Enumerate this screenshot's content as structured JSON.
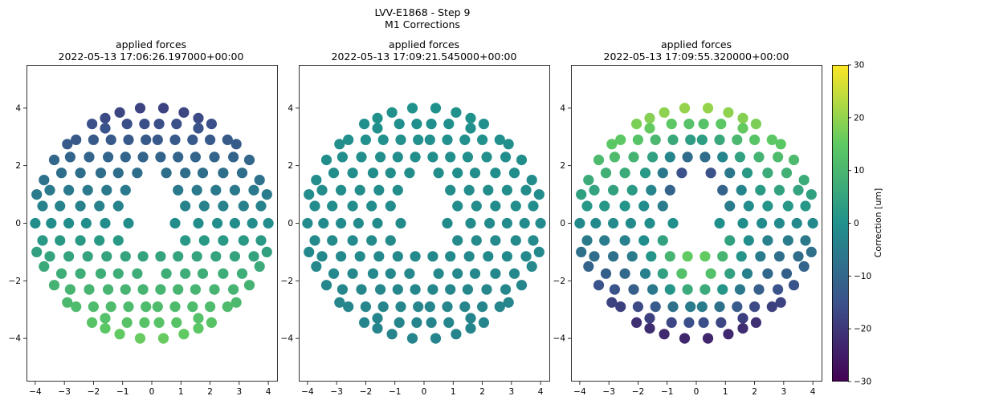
{
  "figure": {
    "suptitle_line1": "LVV-E1868 - Step 9",
    "suptitle_line2": "M1 Corrections"
  },
  "chart_data": [
    {
      "type": "scatter",
      "title": "applied forces",
      "subtitle": "2022-05-13 17:06:26.197000+00:00",
      "xlim": [
        -4.3,
        4.3
      ],
      "ylim": [
        -5.5,
        5.5
      ],
      "xticks": [
        -4,
        -3,
        -2,
        -1,
        0,
        1,
        2,
        3,
        4
      ],
      "yticks": [
        -4,
        -2,
        0,
        2,
        4
      ],
      "color_pattern": "tilt",
      "color_range": [
        -30,
        30
      ],
      "grid": false
    },
    {
      "type": "scatter",
      "title": "applied forces",
      "subtitle": "2022-05-13 17:09:21.545000+00:00",
      "xlim": [
        -4.3,
        4.3
      ],
      "ylim": [
        -5.5,
        5.5
      ],
      "xticks": [
        -4,
        -3,
        -2,
        -1,
        0,
        1,
        2,
        3,
        4
      ],
      "yticks": [
        -4,
        -2,
        0,
        2,
        4
      ],
      "color_pattern": "flat",
      "color_range": [
        -30,
        30
      ],
      "grid": false
    },
    {
      "type": "scatter",
      "title": "applied forces",
      "subtitle": "2022-05-13 17:09:55.320000+00:00",
      "xlim": [
        -4.3,
        4.3
      ],
      "ylim": [
        -5.5,
        5.5
      ],
      "xticks": [
        -4,
        -3,
        -2,
        -1,
        0,
        1,
        2,
        3,
        4
      ],
      "yticks": [
        -4,
        -2,
        0,
        2,
        4
      ],
      "color_pattern": "strong",
      "color_range": [
        -30,
        30
      ],
      "grid": false
    }
  ],
  "colorbar": {
    "label": "Correction [um]",
    "ticks": [
      30,
      20,
      10,
      0,
      -10,
      -20,
      -30
    ],
    "colormap": [
      "#440154",
      "#3b528b",
      "#21918c",
      "#5ec962",
      "#fde725"
    ]
  },
  "actuator_rows": [
    {
      "y": 4.0,
      "x": [
        -0.4,
        0.4
      ]
    },
    {
      "y": 3.85,
      "x": [
        -1.1,
        1.1
      ]
    },
    {
      "y": 3.65,
      "x": [
        -1.6,
        1.6
      ]
    },
    {
      "y": 3.45,
      "x": [
        -2.05,
        -0.85,
        -0.25,
        0.25,
        0.85,
        2.05
      ]
    },
    {
      "y": 3.3,
      "x": [
        -1.6,
        1.6
      ]
    },
    {
      "y": 2.9,
      "x": [
        -2.6,
        -2.0,
        -1.4,
        -0.8,
        -0.2,
        0.2,
        0.8,
        1.4,
        2.0,
        2.6
      ]
    },
    {
      "y": 2.75,
      "x": [
        -2.9,
        2.9
      ]
    },
    {
      "y": 2.3,
      "x": [
        -2.8,
        -2.15,
        -1.5,
        -0.9,
        -0.3,
        0.3,
        0.9,
        1.5,
        2.15,
        2.8
      ]
    },
    {
      "y": 2.2,
      "x": [
        -3.35,
        3.35
      ]
    },
    {
      "y": 1.75,
      "x": [
        -3.1,
        -2.45,
        -1.75,
        -1.15,
        -0.5,
        0.5,
        1.15,
        1.75,
        2.45,
        3.1
      ]
    },
    {
      "y": 1.5,
      "x": [
        -3.7,
        3.7
      ]
    },
    {
      "y": 1.15,
      "x": [
        -3.5,
        -2.85,
        -2.2,
        -1.55,
        -0.9,
        0.9,
        1.55,
        2.2,
        2.85,
        3.5
      ]
    },
    {
      "y": 1.0,
      "x": [
        -3.95,
        3.95
      ]
    },
    {
      "y": 0.6,
      "x": [
        -3.75,
        -3.15,
        -2.45,
        -1.8,
        -1.15,
        1.15,
        1.8,
        2.45,
        3.15,
        3.75
      ]
    },
    {
      "y": 0.0,
      "x": [
        -4.0,
        -3.45,
        -2.85,
        -2.25,
        -1.6,
        -0.8,
        0.8,
        1.6,
        2.25,
        2.85,
        3.45,
        4.0
      ]
    },
    {
      "y": -0.6,
      "x": [
        -3.75,
        -3.15,
        -2.45,
        -1.8,
        -1.15,
        1.15,
        1.8,
        2.45,
        3.15,
        3.75
      ]
    },
    {
      "y": -1.0,
      "x": [
        -3.95,
        3.95
      ]
    },
    {
      "y": -1.15,
      "x": [
        -3.5,
        -2.85,
        -2.2,
        -1.55,
        -0.9,
        -0.3,
        0.3,
        0.9,
        1.55,
        2.2,
        2.85,
        3.5
      ]
    },
    {
      "y": -1.5,
      "x": [
        -3.7,
        3.7
      ]
    },
    {
      "y": -1.75,
      "x": [
        -3.1,
        -2.45,
        -1.75,
        -1.15,
        -0.5,
        0.5,
        1.15,
        1.75,
        2.45,
        3.1
      ]
    },
    {
      "y": -2.15,
      "x": [
        -3.35,
        3.35
      ]
    },
    {
      "y": -2.3,
      "x": [
        -2.8,
        -2.15,
        -1.5,
        -0.9,
        -0.3,
        0.3,
        0.9,
        1.5,
        2.15,
        2.8
      ]
    },
    {
      "y": -2.75,
      "x": [
        -2.9,
        2.9
      ]
    },
    {
      "y": -2.9,
      "x": [
        -2.6,
        -2.0,
        -1.4,
        -0.8,
        -0.2,
        0.2,
        0.8,
        1.4,
        2.0,
        2.6
      ]
    },
    {
      "y": -3.3,
      "x": [
        -1.6,
        1.6
      ]
    },
    {
      "y": -3.45,
      "x": [
        -2.05,
        -0.85,
        -0.25,
        0.25,
        0.85,
        2.05
      ]
    },
    {
      "y": -3.65,
      "x": [
        -1.6,
        1.6
      ]
    },
    {
      "y": -3.85,
      "x": [
        -1.1,
        1.1
      ]
    },
    {
      "y": -4.0,
      "x": [
        -0.4,
        0.4
      ]
    }
  ]
}
